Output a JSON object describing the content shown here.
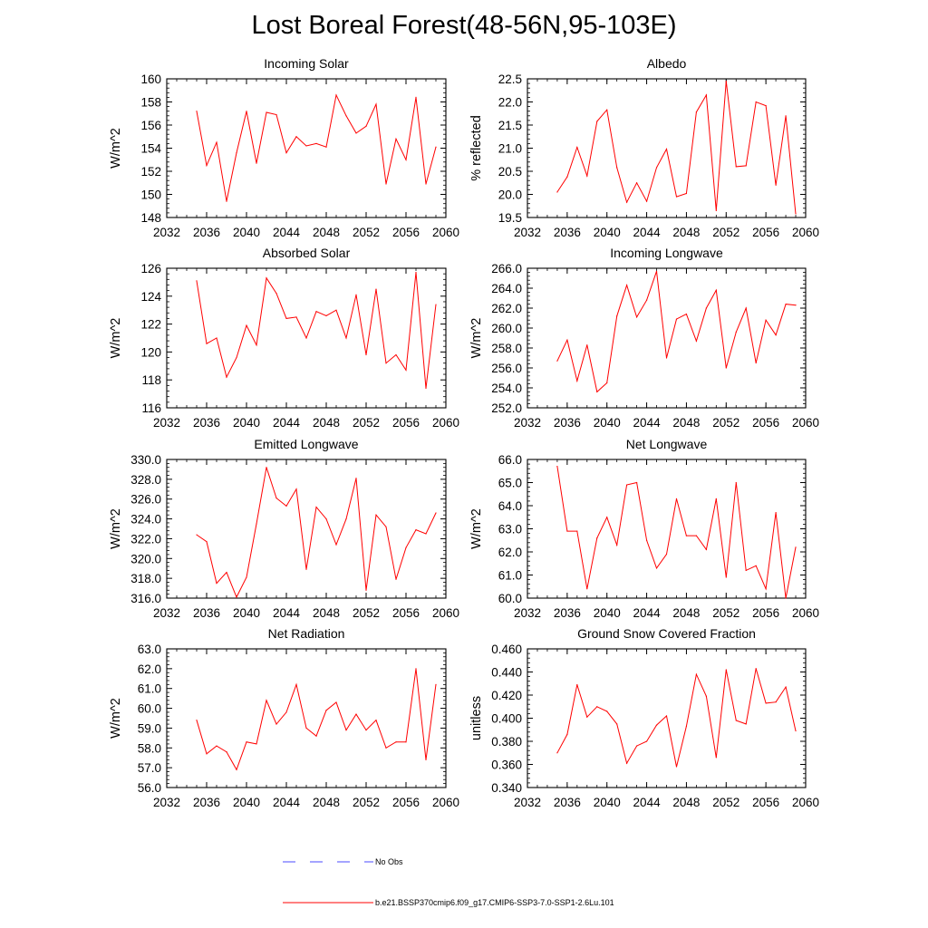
{
  "page_title": "Lost Boreal Forest(48-56N,95-103E)",
  "colors": {
    "model_line": "#ff0000",
    "obs_line": "#4a4aff",
    "axis": "#000000"
  },
  "legend": {
    "obs_label": "No Obs",
    "model_label": "b.e21.BSSP370cmip6.f09_g17.CMIP6-SSP3-7.0-SSP1-2.6Lu.101"
  },
  "chart_data": [
    {
      "type": "line",
      "title": "Incoming Solar",
      "ylabel": "W/m^2",
      "xlim": [
        2032,
        2060
      ],
      "ylim": [
        148,
        160
      ],
      "yticks": [
        148,
        150,
        152,
        154,
        156,
        158,
        160
      ],
      "ytick_labels": [
        "148",
        "150",
        "152",
        "154",
        "156",
        "158",
        "160"
      ],
      "xticks": [
        2032,
        2036,
        2040,
        2044,
        2048,
        2052,
        2056,
        2060
      ],
      "xtick_labels": [
        "2032",
        "2036",
        "2040",
        "2044",
        "2048",
        "2052",
        "2056",
        "2060"
      ],
      "x": [
        2035,
        2036,
        2037,
        2038,
        2039,
        2040,
        2041,
        2042,
        2043,
        2044,
        2045,
        2046,
        2047,
        2048,
        2049,
        2050,
        2051,
        2052,
        2053,
        2054,
        2055,
        2056,
        2057,
        2058,
        2059
      ],
      "y": [
        157.2,
        152.5,
        154.5,
        149.4,
        153.6,
        157.2,
        152.7,
        157.1,
        156.9,
        153.6,
        155.0,
        154.2,
        154.4,
        154.1,
        158.6,
        156.8,
        155.3,
        155.9,
        157.8,
        150.9,
        154.8,
        153.0,
        158.4,
        150.9,
        154.1
      ]
    },
    {
      "type": "line",
      "title": "Albedo",
      "ylabel": "% reflected",
      "xlim": [
        2032,
        2060
      ],
      "ylim": [
        19.5,
        22.5
      ],
      "yticks": [
        19.5,
        20.0,
        20.5,
        21.0,
        21.5,
        22.0,
        22.5
      ],
      "ytick_labels": [
        "19.5",
        "20.0",
        "20.5",
        "21.0",
        "21.5",
        "22.0",
        "22.5"
      ],
      "xticks": [
        2032,
        2036,
        2040,
        2044,
        2048,
        2052,
        2056,
        2060
      ],
      "xtick_labels": [
        "2032",
        "2036",
        "2040",
        "2044",
        "2048",
        "2052",
        "2056",
        "2060"
      ],
      "x": [
        2035,
        2036,
        2037,
        2038,
        2039,
        2040,
        2041,
        2042,
        2043,
        2044,
        2045,
        2046,
        2047,
        2048,
        2049,
        2050,
        2051,
        2052,
        2053,
        2054,
        2055,
        2056,
        2057,
        2058,
        2059
      ],
      "y": [
        20.05,
        20.38,
        21.02,
        20.4,
        21.58,
        21.83,
        20.58,
        19.83,
        20.25,
        19.85,
        20.58,
        20.98,
        19.95,
        20.02,
        21.78,
        22.15,
        19.65,
        22.45,
        20.6,
        20.62,
        22.0,
        21.92,
        20.2,
        21.7,
        19.58
      ]
    },
    {
      "type": "line",
      "title": "Absorbed Solar",
      "ylabel": "W/m^2",
      "xlim": [
        2032,
        2060
      ],
      "ylim": [
        116,
        126
      ],
      "yticks": [
        116,
        118,
        120,
        122,
        124,
        126
      ],
      "ytick_labels": [
        "116",
        "118",
        "120",
        "122",
        "124",
        "126"
      ],
      "xticks": [
        2032,
        2036,
        2040,
        2044,
        2048,
        2052,
        2056,
        2060
      ],
      "xtick_labels": [
        "2032",
        "2036",
        "2040",
        "2044",
        "2048",
        "2052",
        "2056",
        "2060"
      ],
      "x": [
        2035,
        2036,
        2037,
        2038,
        2039,
        2040,
        2041,
        2042,
        2043,
        2044,
        2045,
        2046,
        2047,
        2048,
        2049,
        2050,
        2051,
        2052,
        2053,
        2054,
        2055,
        2056,
        2057,
        2058,
        2059
      ],
      "y": [
        125.1,
        120.6,
        121.0,
        118.2,
        119.6,
        121.9,
        120.5,
        125.3,
        124.2,
        122.4,
        122.5,
        121.0,
        122.9,
        122.6,
        123.0,
        121.0,
        124.1,
        119.8,
        124.5,
        119.2,
        119.8,
        118.7,
        125.7,
        117.4,
        123.4
      ]
    },
    {
      "type": "line",
      "title": "Incoming Longwave",
      "ylabel": "W/m^2",
      "xlim": [
        2032,
        2060
      ],
      "ylim": [
        252.0,
        266.0
      ],
      "yticks": [
        252,
        254,
        256,
        258,
        260,
        262,
        264,
        266
      ],
      "ytick_labels": [
        "252.0",
        "254.0",
        "256.0",
        "258.0",
        "260.0",
        "262.0",
        "264.0",
        "266.0"
      ],
      "xticks": [
        2032,
        2036,
        2040,
        2044,
        2048,
        2052,
        2056,
        2060
      ],
      "xtick_labels": [
        "2032",
        "2036",
        "2040",
        "2044",
        "2048",
        "2052",
        "2056",
        "2060"
      ],
      "x": [
        2035,
        2036,
        2037,
        2038,
        2039,
        2040,
        2041,
        2042,
        2043,
        2044,
        2045,
        2046,
        2047,
        2048,
        2049,
        2050,
        2051,
        2052,
        2053,
        2054,
        2055,
        2056,
        2057,
        2058,
        2059
      ],
      "y": [
        256.7,
        258.8,
        254.7,
        258.3,
        253.6,
        254.5,
        261.2,
        264.3,
        261.1,
        262.8,
        265.7,
        257.0,
        260.9,
        261.4,
        258.7,
        262.0,
        263.8,
        256.0,
        259.6,
        262.0,
        256.5,
        260.8,
        259.3,
        262.4,
        262.3
      ]
    },
    {
      "type": "line",
      "title": "Emitted Longwave",
      "ylabel": "W/m^2",
      "xlim": [
        2032,
        2060
      ],
      "ylim": [
        316.0,
        330.0
      ],
      "yticks": [
        316,
        318,
        320,
        322,
        324,
        326,
        328,
        330
      ],
      "ytick_labels": [
        "316.0",
        "318.0",
        "320.0",
        "322.0",
        "324.0",
        "326.0",
        "328.0",
        "330.0"
      ],
      "xticks": [
        2032,
        2036,
        2040,
        2044,
        2048,
        2052,
        2056,
        2060
      ],
      "xtick_labels": [
        "2032",
        "2036",
        "2040",
        "2044",
        "2048",
        "2052",
        "2056",
        "2060"
      ],
      "x": [
        2035,
        2036,
        2037,
        2038,
        2039,
        2040,
        2041,
        2042,
        2043,
        2044,
        2045,
        2046,
        2047,
        2048,
        2049,
        2050,
        2051,
        2052,
        2053,
        2054,
        2055,
        2056,
        2057,
        2058,
        2059
      ],
      "y": [
        322.4,
        321.7,
        317.5,
        318.6,
        316.1,
        318.1,
        323.5,
        329.2,
        326.1,
        325.3,
        327.0,
        318.9,
        325.2,
        324.0,
        321.4,
        324.0,
        328.1,
        316.8,
        324.4,
        323.2,
        317.9,
        321.1,
        322.9,
        322.5,
        324.6
      ]
    },
    {
      "type": "line",
      "title": "Net Longwave",
      "ylabel": "W/m^2",
      "xlim": [
        2032,
        2060
      ],
      "ylim": [
        60.0,
        66.0
      ],
      "yticks": [
        60,
        61,
        62,
        63,
        64,
        65,
        66
      ],
      "ytick_labels": [
        "60.0",
        "61.0",
        "62.0",
        "63.0",
        "64.0",
        "65.0",
        "66.0"
      ],
      "xticks": [
        2032,
        2036,
        2040,
        2044,
        2048,
        2052,
        2056,
        2060
      ],
      "xtick_labels": [
        "2032",
        "2036",
        "2040",
        "2044",
        "2048",
        "2052",
        "2056",
        "2060"
      ],
      "x": [
        2035,
        2036,
        2037,
        2038,
        2039,
        2040,
        2041,
        2042,
        2043,
        2044,
        2045,
        2046,
        2047,
        2048,
        2049,
        2050,
        2051,
        2052,
        2053,
        2054,
        2055,
        2056,
        2057,
        2058,
        2059
      ],
      "y": [
        65.7,
        62.9,
        62.9,
        60.4,
        62.6,
        63.5,
        62.3,
        64.9,
        65.0,
        62.5,
        61.3,
        61.9,
        64.3,
        62.7,
        62.7,
        62.1,
        64.3,
        60.9,
        65.0,
        61.2,
        61.4,
        60.4,
        63.7,
        60.0,
        62.2
      ]
    },
    {
      "type": "line",
      "title": "Net Radiation",
      "ylabel": "W/m^2",
      "xlim": [
        2032,
        2060
      ],
      "ylim": [
        56.0,
        63.0
      ],
      "yticks": [
        56,
        57,
        58,
        59,
        60,
        61,
        62,
        63
      ],
      "ytick_labels": [
        "56.0",
        "57.0",
        "58.0",
        "59.0",
        "60.0",
        "61.0",
        "62.0",
        "63.0"
      ],
      "xticks": [
        2032,
        2036,
        2040,
        2044,
        2048,
        2052,
        2056,
        2060
      ],
      "xtick_labels": [
        "2032",
        "2036",
        "2040",
        "2044",
        "2048",
        "2052",
        "2056",
        "2060"
      ],
      "x": [
        2035,
        2036,
        2037,
        2038,
        2039,
        2040,
        2041,
        2042,
        2043,
        2044,
        2045,
        2046,
        2047,
        2048,
        2049,
        2050,
        2051,
        2052,
        2053,
        2054,
        2055,
        2056,
        2057,
        2058,
        2059
      ],
      "y": [
        59.4,
        57.7,
        58.1,
        57.8,
        56.9,
        58.3,
        58.2,
        60.4,
        59.2,
        59.8,
        61.2,
        59.0,
        58.6,
        59.9,
        60.3,
        58.9,
        59.7,
        58.9,
        59.4,
        58.0,
        58.3,
        58.3,
        62.0,
        57.4,
        61.2
      ]
    },
    {
      "type": "line",
      "title": "Ground Snow Covered Fraction",
      "ylabel": "unitless",
      "xlim": [
        2032,
        2060
      ],
      "ylim": [
        0.34,
        0.46
      ],
      "yticks": [
        0.34,
        0.36,
        0.38,
        0.4,
        0.42,
        0.44,
        0.46
      ],
      "ytick_labels": [
        "0.340",
        "0.360",
        "0.380",
        "0.400",
        "0.420",
        "0.440",
        "0.460"
      ],
      "xticks": [
        2032,
        2036,
        2040,
        2044,
        2048,
        2052,
        2056,
        2060
      ],
      "xtick_labels": [
        "2032",
        "2036",
        "2040",
        "2044",
        "2048",
        "2052",
        "2056",
        "2060"
      ],
      "x": [
        2035,
        2036,
        2037,
        2038,
        2039,
        2040,
        2041,
        2042,
        2043,
        2044,
        2045,
        2046,
        2047,
        2048,
        2049,
        2050,
        2051,
        2052,
        2053,
        2054,
        2055,
        2056,
        2057,
        2058,
        2059
      ],
      "y": [
        0.37,
        0.386,
        0.429,
        0.401,
        0.41,
        0.406,
        0.395,
        0.361,
        0.376,
        0.38,
        0.394,
        0.402,
        0.358,
        0.393,
        0.438,
        0.419,
        0.366,
        0.442,
        0.398,
        0.395,
        0.443,
        0.413,
        0.414,
        0.427,
        0.389
      ]
    }
  ]
}
